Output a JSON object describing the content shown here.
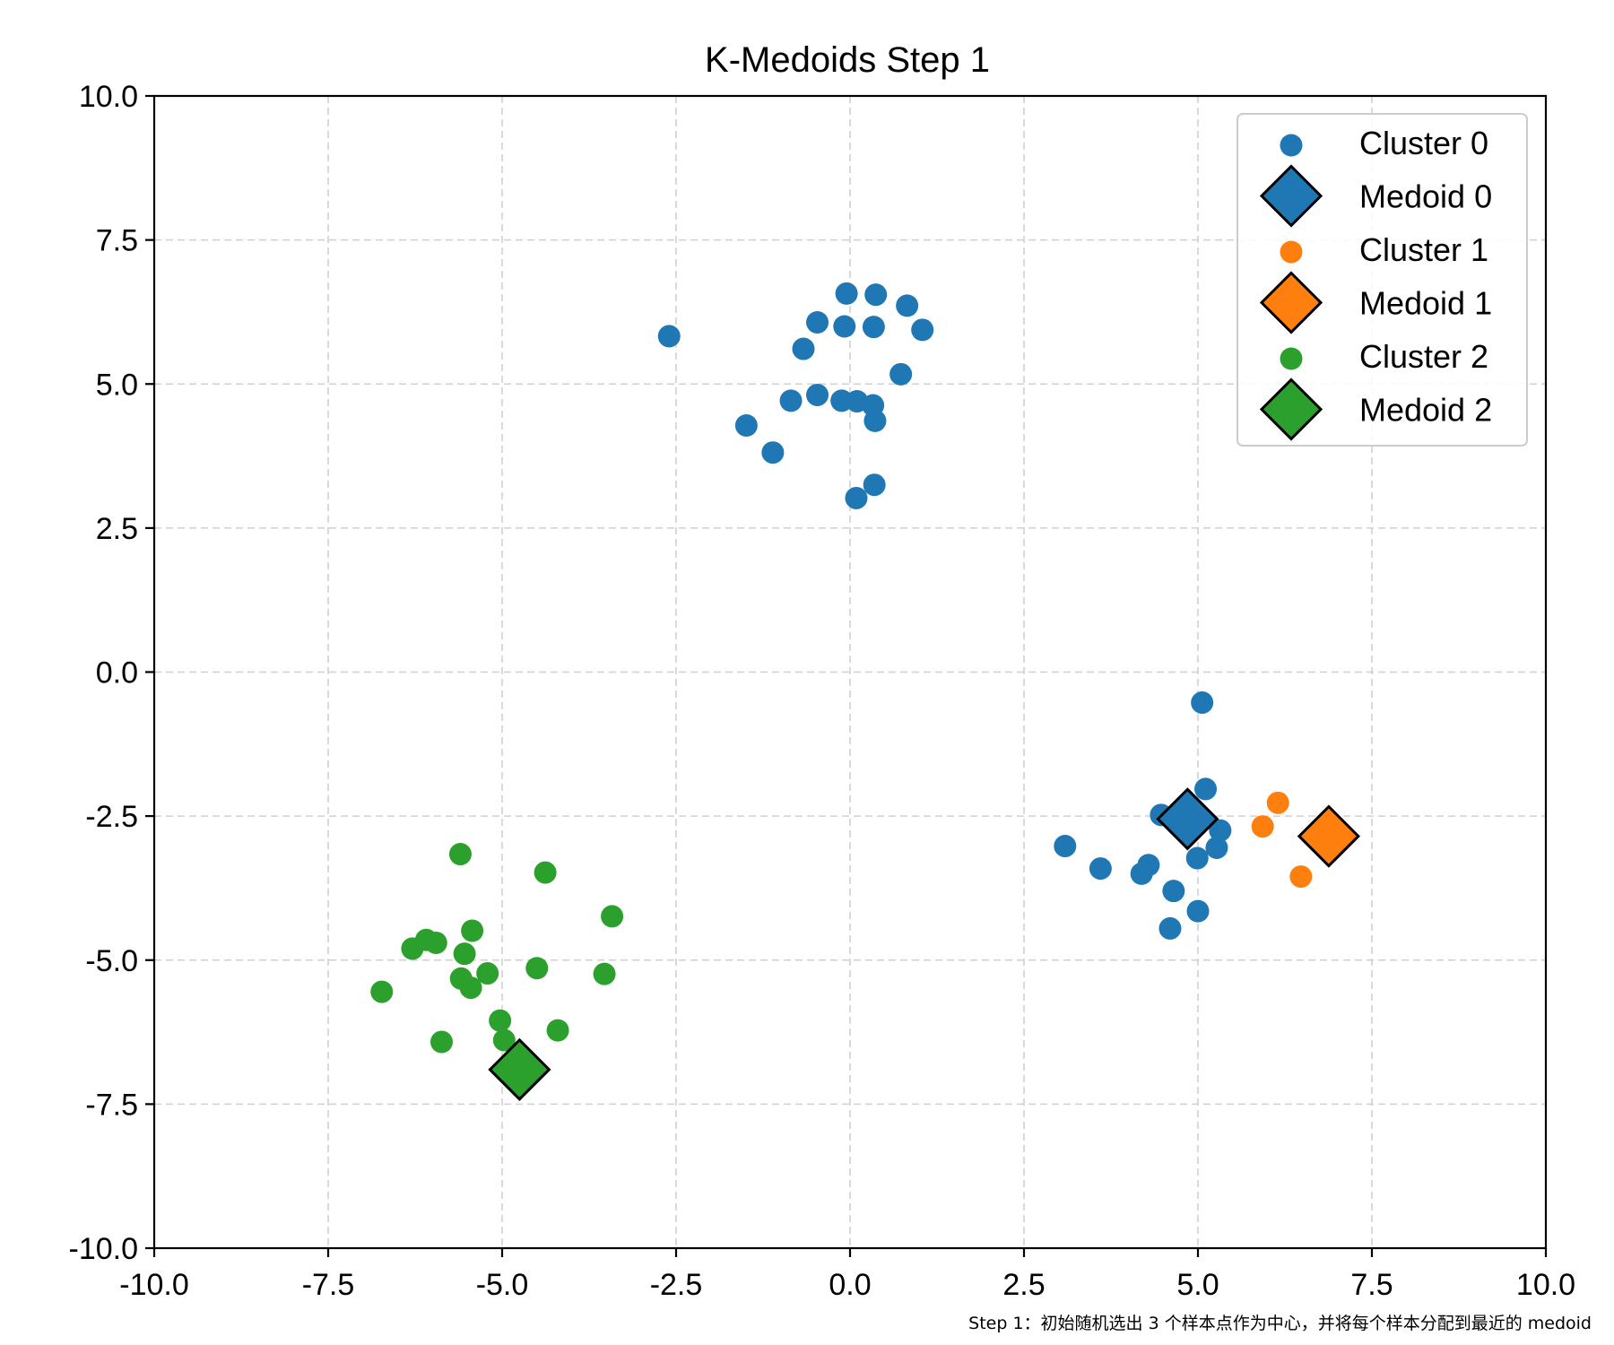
{
  "chart_data": {
    "type": "scatter",
    "title": "K-Medoids Step 1",
    "xlabel": "",
    "ylabel": "",
    "xlim": [
      -10,
      10
    ],
    "ylim": [
      -10,
      10
    ],
    "grid": true,
    "legend_position": "top-right",
    "x_ticks": [
      -10,
      -7.5,
      -5,
      -2.5,
      0,
      2.5,
      5,
      7.5,
      10
    ],
    "y_ticks": [
      -10,
      -7.5,
      -5,
      -2.5,
      0,
      2.5,
      5,
      7.5,
      10
    ],
    "x_tick_labels": [
      "-10.0",
      "-7.5",
      "-5.0",
      "-2.5",
      "0.0",
      "2.5",
      "5.0",
      "7.5",
      "10.0"
    ],
    "y_tick_labels": [
      "-10.0",
      "-7.5",
      "-5.0",
      "-2.5",
      "0.0",
      "2.5",
      "5.0",
      "7.5",
      "10.0"
    ],
    "caption": "Step 1：初始随机选出 3 个样本点作为中心，并将每个样本分配到最近的 medoid",
    "series": [
      {
        "name": "Cluster 0",
        "kind": "points",
        "color": "#1f77b4",
        "points": [
          [
            -2.6,
            5.83
          ],
          [
            -0.05,
            6.57
          ],
          [
            0.37,
            6.55
          ],
          [
            0.82,
            6.36
          ],
          [
            -0.47,
            6.07
          ],
          [
            -0.08,
            6.0
          ],
          [
            0.34,
            5.99
          ],
          [
            1.04,
            5.94
          ],
          [
            -0.67,
            5.61
          ],
          [
            0.73,
            5.17
          ],
          [
            -0.85,
            4.71
          ],
          [
            -0.47,
            4.81
          ],
          [
            -0.12,
            4.71
          ],
          [
            0.1,
            4.7
          ],
          [
            0.33,
            4.63
          ],
          [
            0.36,
            4.36
          ],
          [
            -1.49,
            4.28
          ],
          [
            -1.11,
            3.81
          ],
          [
            0.35,
            3.25
          ],
          [
            0.09,
            3.02
          ],
          [
            5.06,
            -0.53
          ],
          [
            5.11,
            -2.03
          ],
          [
            4.47,
            -2.48
          ],
          [
            5.32,
            -2.75
          ],
          [
            3.09,
            -3.02
          ],
          [
            5.27,
            -3.05
          ],
          [
            4.99,
            -3.23
          ],
          [
            4.29,
            -3.35
          ],
          [
            3.6,
            -3.41
          ],
          [
            4.19,
            -3.5
          ],
          [
            4.65,
            -3.8
          ],
          [
            5.0,
            -4.15
          ],
          [
            4.6,
            -4.45
          ]
        ]
      },
      {
        "name": "Medoid 0",
        "kind": "medoid",
        "color": "#1f77b4",
        "points": [
          [
            4.85,
            -2.55
          ]
        ]
      },
      {
        "name": "Cluster 1",
        "kind": "points",
        "color": "#ff7f0e",
        "points": [
          [
            6.15,
            -2.27
          ],
          [
            5.93,
            -2.68
          ],
          [
            6.48,
            -3.55
          ]
        ]
      },
      {
        "name": "Medoid 1",
        "kind": "medoid",
        "color": "#ff7f0e",
        "points": [
          [
            6.88,
            -2.85
          ]
        ]
      },
      {
        "name": "Cluster 2",
        "kind": "points",
        "color": "#2ca02c",
        "points": [
          [
            -5.6,
            -3.16
          ],
          [
            -4.38,
            -3.48
          ],
          [
            -3.42,
            -4.24
          ],
          [
            -5.43,
            -4.49
          ],
          [
            -6.09,
            -4.65
          ],
          [
            -5.95,
            -4.7
          ],
          [
            -6.29,
            -4.8
          ],
          [
            -5.54,
            -4.89
          ],
          [
            -4.5,
            -5.14
          ],
          [
            -5.21,
            -5.23
          ],
          [
            -3.53,
            -5.24
          ],
          [
            -5.59,
            -5.32
          ],
          [
            -5.45,
            -5.48
          ],
          [
            -6.73,
            -5.55
          ],
          [
            -5.03,
            -6.05
          ],
          [
            -4.2,
            -6.22
          ],
          [
            -5.87,
            -6.42
          ],
          [
            -4.97,
            -6.39
          ]
        ]
      },
      {
        "name": "Medoid 2",
        "kind": "medoid",
        "color": "#2ca02c",
        "points": [
          [
            -4.75,
            -6.9
          ]
        ]
      }
    ]
  }
}
